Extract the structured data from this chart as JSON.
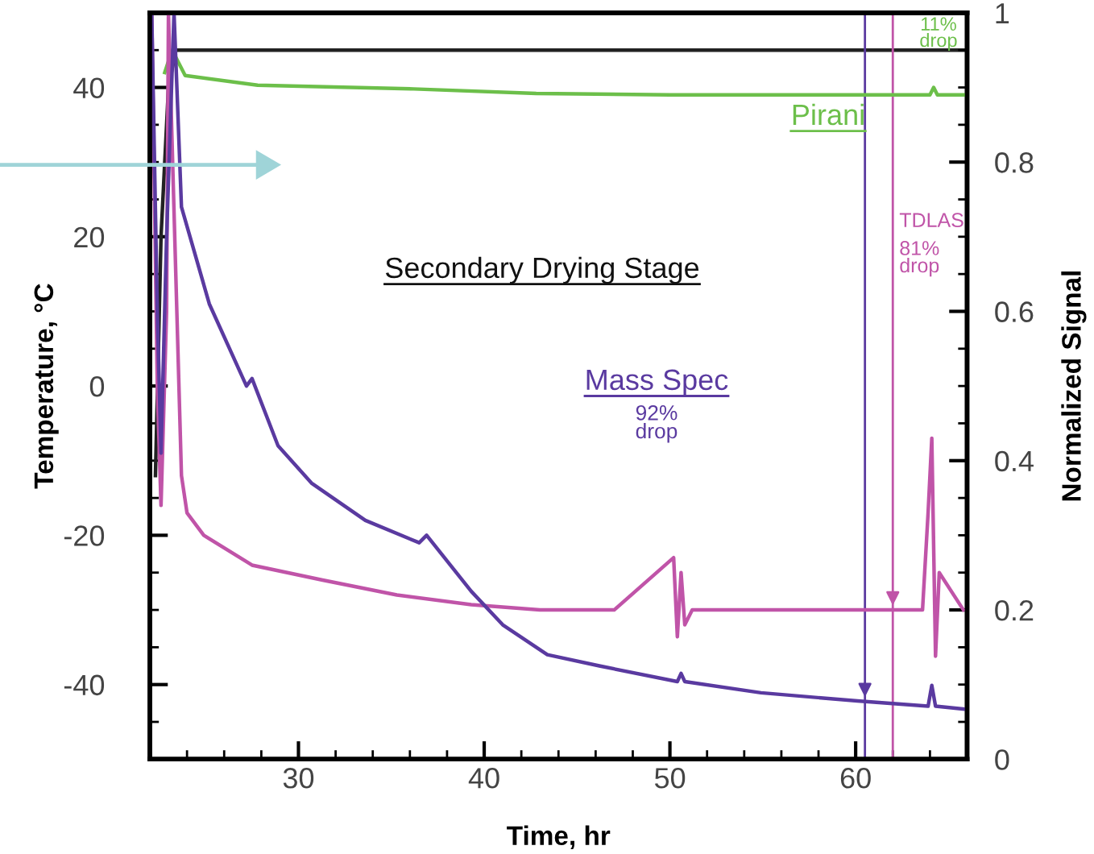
{
  "chart_data": {
    "type": "line",
    "xlabel": "Time, hr",
    "ylabel": "Temperature, °C",
    "y2label": "Normalized Signal",
    "xlim": [
      22,
      66
    ],
    "xticks": [
      30,
      40,
      50,
      60
    ],
    "ylim": [
      -50,
      50
    ],
    "yticks": [
      -40,
      -20,
      0,
      20,
      40
    ],
    "y2lim": [
      0,
      1
    ],
    "y2ticks": [
      0,
      0.2,
      0.4,
      0.6,
      0.8,
      1
    ],
    "grid": false,
    "legend": false,
    "marker": "none",
    "line_style": "solid",
    "series": [
      {
        "color": "#222222",
        "x": [
          22.3,
          22.6,
          23.0,
          23.4,
          65.8
        ],
        "values": [
          -12,
          20,
          40,
          45,
          45
        ]
      },
      {
        "name": "Pirani",
        "color": "#6cbf4a",
        "axis": "y2",
        "x": [
          22.8,
          23.2,
          23.9,
          27.8,
          36.2,
          42.8,
          50,
          60,
          64.0,
          64.2,
          64.4,
          65.8
        ],
        "values": [
          0.92,
          0.95,
          0.916,
          0.903,
          0.898,
          0.892,
          0.89,
          0.89,
          0.89,
          0.9,
          0.89,
          0.89
        ]
      },
      {
        "name": "TDLAS",
        "color": "#c054a8",
        "axis": "y2",
        "x": [
          22.1,
          22.4,
          22.6,
          22.9,
          23.0,
          23.7,
          24.0,
          24.9,
          27.5,
          31.3,
          35.3,
          39.3,
          43,
          47,
          50.2,
          50.4,
          50.6,
          50.8,
          51.2,
          55,
          60,
          63.6,
          63.9,
          64.1,
          64.3,
          64.5,
          65.8
        ],
        "values": [
          1,
          0.5,
          0.34,
          0.6,
          1,
          0.38,
          0.33,
          0.3,
          0.26,
          0.24,
          0.22,
          0.207,
          0.2,
          0.2,
          0.27,
          0.164,
          0.25,
          0.18,
          0.2,
          0.2,
          0.2,
          0.2,
          0.33,
          0.43,
          0.138,
          0.25,
          0.2
        ]
      },
      {
        "name": "Mass Spec",
        "color": "#5a3aa0",
        "axis": "y2",
        "x": [
          22.1,
          22.4,
          22.6,
          22.9,
          23.3,
          23.7,
          25.2,
          27.2,
          27.5,
          28.9,
          30.7,
          33.6,
          36.5,
          36.9,
          39.3,
          41.0,
          43.4,
          46.2,
          50.4,
          50.6,
          50.8,
          54.9,
          60.1,
          63.9,
          64.1,
          64.3,
          65.9
        ],
        "values": [
          1,
          0.6,
          0.41,
          0.7,
          1,
          0.74,
          0.61,
          0.5,
          0.51,
          0.42,
          0.37,
          0.32,
          0.29,
          0.3,
          0.225,
          0.18,
          0.14,
          0.125,
          0.104,
          0.115,
          0.104,
          0.089,
          0.078,
          0.071,
          0.099,
          0.071,
          0.067
        ]
      }
    ],
    "ref_lines": [
      {
        "axis": "x",
        "value": 60.5,
        "color": "#5a3aa0"
      },
      {
        "axis": "x",
        "value": 62,
        "color": "#c054a8"
      }
    ],
    "annotations": [
      "Secondary Drying Stage",
      "11% drop",
      "81% drop",
      "92% drop"
    ]
  }
}
